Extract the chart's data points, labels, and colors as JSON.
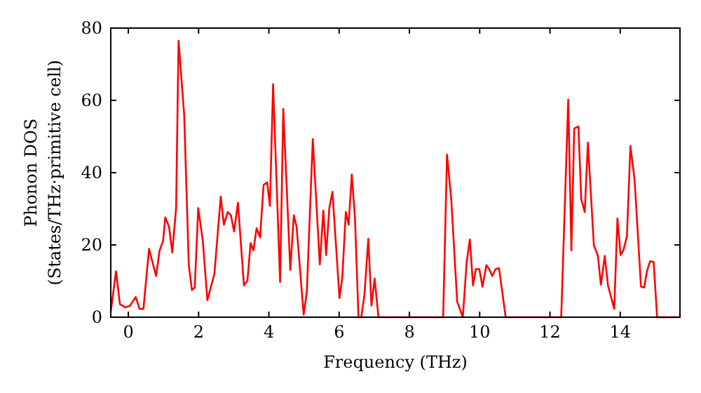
{
  "chart_data": {
    "type": "line",
    "xlabel": "Frequency (THz)",
    "ylabel": "Phonon DOS\n(States/THz·primitive cell)",
    "xlim": [
      -0.5,
      15.7
    ],
    "ylim": [
      0,
      80
    ],
    "xticks": [
      0,
      2,
      4,
      6,
      8,
      10,
      12,
      14
    ],
    "yticks": [
      0,
      20,
      40,
      60,
      80
    ],
    "grid": false,
    "marker": "none",
    "line_style": "solid",
    "series": [
      {
        "color": "#ff0000",
        "x": [
          -0.5,
          -0.35,
          -0.24,
          -0.08,
          0.05,
          0.21,
          0.32,
          0.43,
          0.59,
          0.79,
          0.89,
          0.99,
          1.05,
          1.16,
          1.25,
          1.36,
          1.43,
          1.59,
          1.72,
          1.81,
          1.89,
          1.99,
          2.12,
          2.25,
          2.45,
          2.63,
          2.72,
          2.83,
          2.92,
          3.01,
          3.12,
          3.29,
          3.39,
          3.48,
          3.56,
          3.65,
          3.75,
          3.85,
          3.95,
          4.03,
          4.12,
          4.32,
          4.41,
          4.61,
          4.71,
          4.79,
          4.99,
          5.08,
          5.25,
          5.45,
          5.55,
          5.63,
          5.72,
          5.81,
          5.92,
          6.01,
          6.09,
          6.19,
          6.27,
          6.36,
          6.45,
          6.55,
          6.63,
          6.72,
          6.83,
          6.92,
          7.01,
          7.12,
          8.96,
          9.07,
          9.19,
          9.36,
          9.52,
          9.63,
          9.72,
          9.81,
          9.89,
          9.99,
          10.08,
          10.19,
          10.28,
          10.36,
          10.45,
          10.55,
          10.74,
          12.32,
          12.52,
          12.61,
          12.69,
          12.81,
          12.89,
          12.99,
          13.08,
          13.25,
          13.36,
          13.45,
          13.56,
          13.65,
          13.83,
          13.92,
          14.01,
          14.09,
          14.19,
          14.29,
          14.41,
          14.59,
          14.68,
          14.76,
          14.85,
          14.95,
          15.05,
          15.7
        ],
        "values": [
          1.5,
          12.7,
          3.6,
          2.7,
          3.2,
          5.6,
          2.3,
          2.3,
          18.9,
          11.4,
          18.5,
          21.1,
          27.6,
          25,
          17.9,
          30.2,
          76.5,
          56,
          14.6,
          7.5,
          8.2,
          30.2,
          21,
          4.7,
          12,
          33.4,
          25.6,
          29.1,
          28.2,
          23.7,
          31.7,
          8.8,
          10.1,
          20.5,
          18.5,
          24.6,
          22.1,
          36.6,
          37.3,
          30.8,
          64.5,
          9.7,
          57.6,
          13.1,
          28.2,
          25,
          0.7,
          7,
          49.3,
          14.6,
          29.5,
          17.2,
          30.2,
          34.7,
          18.5,
          5.3,
          11,
          29.1,
          25.6,
          39.5,
          27.6,
          0,
          0,
          6.2,
          21.7,
          3.2,
          10.7,
          0,
          0,
          45,
          32.7,
          4.3,
          0,
          15.3,
          21.5,
          8.8,
          13.3,
          13.3,
          8.4,
          14.4,
          13.1,
          11.4,
          13.3,
          13.6,
          0,
          0,
          60.2,
          18.5,
          52.2,
          52.8,
          32.7,
          29.1,
          48.3,
          19.8,
          17.2,
          9,
          17,
          8.8,
          2.3,
          27.3,
          17.2,
          18.5,
          22.4,
          47.4,
          37.9,
          8.5,
          8.2,
          12.7,
          15.5,
          15.3,
          0,
          0
        ]
      }
    ]
  }
}
